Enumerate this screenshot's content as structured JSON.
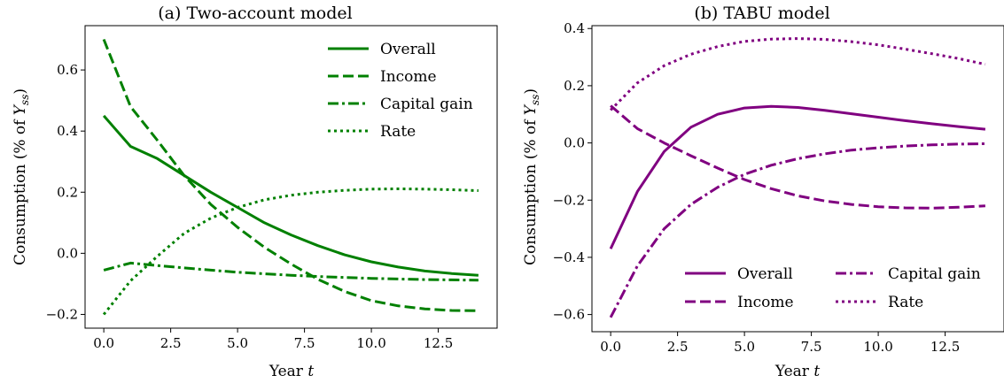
{
  "chart_data": [
    {
      "type": "line",
      "title": "(a) Two-account model",
      "xlabel": "Year t",
      "ylabel": "Consumption (% of Y_ss)",
      "xlim": [
        -0.7,
        14.7
      ],
      "ylim": [
        -0.245,
        0.745
      ],
      "xticks": [
        0.0,
        2.5,
        5.0,
        7.5,
        10.0,
        12.5
      ],
      "xtick_labels": [
        "0.0",
        "2.5",
        "5.0",
        "7.5",
        "10.0",
        "12.5"
      ],
      "yticks": [
        -0.2,
        0.0,
        0.2,
        0.4,
        0.6
      ],
      "ytick_labels": [
        "−0.2",
        "0.0",
        "0.2",
        "0.4",
        "0.6"
      ],
      "color": "#008000",
      "legend": {
        "placement": "top-right",
        "columns": 1
      },
      "x": [
        0,
        1,
        2,
        3,
        4,
        5,
        6,
        7,
        8,
        9,
        10,
        11,
        12,
        13,
        14
      ],
      "series": [
        {
          "name": "Overall",
          "style": "solid",
          "values": [
            0.45,
            0.35,
            0.31,
            0.255,
            0.2,
            0.15,
            0.1,
            0.06,
            0.025,
            -0.005,
            -0.028,
            -0.045,
            -0.058,
            -0.066,
            -0.072
          ]
        },
        {
          "name": "Income",
          "style": "dashed",
          "values": [
            0.7,
            0.48,
            0.37,
            0.255,
            0.16,
            0.085,
            0.02,
            -0.035,
            -0.085,
            -0.125,
            -0.155,
            -0.172,
            -0.182,
            -0.187,
            -0.188
          ]
        },
        {
          "name": "Capital gain",
          "style": "dashdot",
          "values": [
            -0.055,
            -0.032,
            -0.04,
            -0.048,
            -0.055,
            -0.062,
            -0.067,
            -0.072,
            -0.076,
            -0.079,
            -0.082,
            -0.084,
            -0.086,
            -0.087,
            -0.088
          ]
        },
        {
          "name": "Rate",
          "style": "dotted",
          "values": [
            -0.2,
            -0.09,
            -0.01,
            0.065,
            0.115,
            0.15,
            0.175,
            0.19,
            0.2,
            0.206,
            0.21,
            0.211,
            0.21,
            0.208,
            0.205
          ]
        }
      ]
    },
    {
      "type": "line",
      "title": "(b) TABU model",
      "xlabel": "Year t",
      "ylabel": "Consumption (% of Y_ss)",
      "xlim": [
        -0.7,
        14.7
      ],
      "ylim": [
        -0.66,
        0.41
      ],
      "xticks": [
        0.0,
        2.5,
        5.0,
        7.5,
        10.0,
        12.5
      ],
      "xtick_labels": [
        "0.0",
        "2.5",
        "5.0",
        "7.5",
        "10.0",
        "12.5"
      ],
      "yticks": [
        -0.6,
        -0.4,
        -0.2,
        0.0,
        0.2,
        0.4
      ],
      "ytick_labels": [
        "−0.6",
        "−0.4",
        "−0.2",
        "0.0",
        "0.2",
        "0.4"
      ],
      "color": "#800080",
      "legend": {
        "placement": "bottom-right",
        "columns": 2
      },
      "x": [
        0,
        1,
        2,
        3,
        4,
        5,
        6,
        7,
        8,
        9,
        10,
        11,
        12,
        13,
        14
      ],
      "series": [
        {
          "name": "Overall",
          "style": "solid",
          "values": [
            -0.37,
            -0.17,
            -0.03,
            0.055,
            0.1,
            0.122,
            0.128,
            0.124,
            0.114,
            0.102,
            0.09,
            0.078,
            0.067,
            0.057,
            0.048
          ]
        },
        {
          "name": "Income",
          "style": "dashed",
          "values": [
            0.13,
            0.05,
            0.0,
            -0.045,
            -0.088,
            -0.128,
            -0.16,
            -0.185,
            -0.203,
            -0.215,
            -0.223,
            -0.227,
            -0.228,
            -0.225,
            -0.22
          ]
        },
        {
          "name": "Capital gain",
          "style": "dashdot",
          "values": [
            -0.61,
            -0.43,
            -0.3,
            -0.215,
            -0.155,
            -0.11,
            -0.078,
            -0.055,
            -0.038,
            -0.025,
            -0.017,
            -0.011,
            -0.007,
            -0.004,
            -0.003
          ]
        },
        {
          "name": "Rate",
          "style": "dotted",
          "values": [
            0.115,
            0.21,
            0.27,
            0.31,
            0.337,
            0.355,
            0.363,
            0.365,
            0.362,
            0.354,
            0.343,
            0.328,
            0.312,
            0.295,
            0.275
          ]
        }
      ]
    }
  ]
}
